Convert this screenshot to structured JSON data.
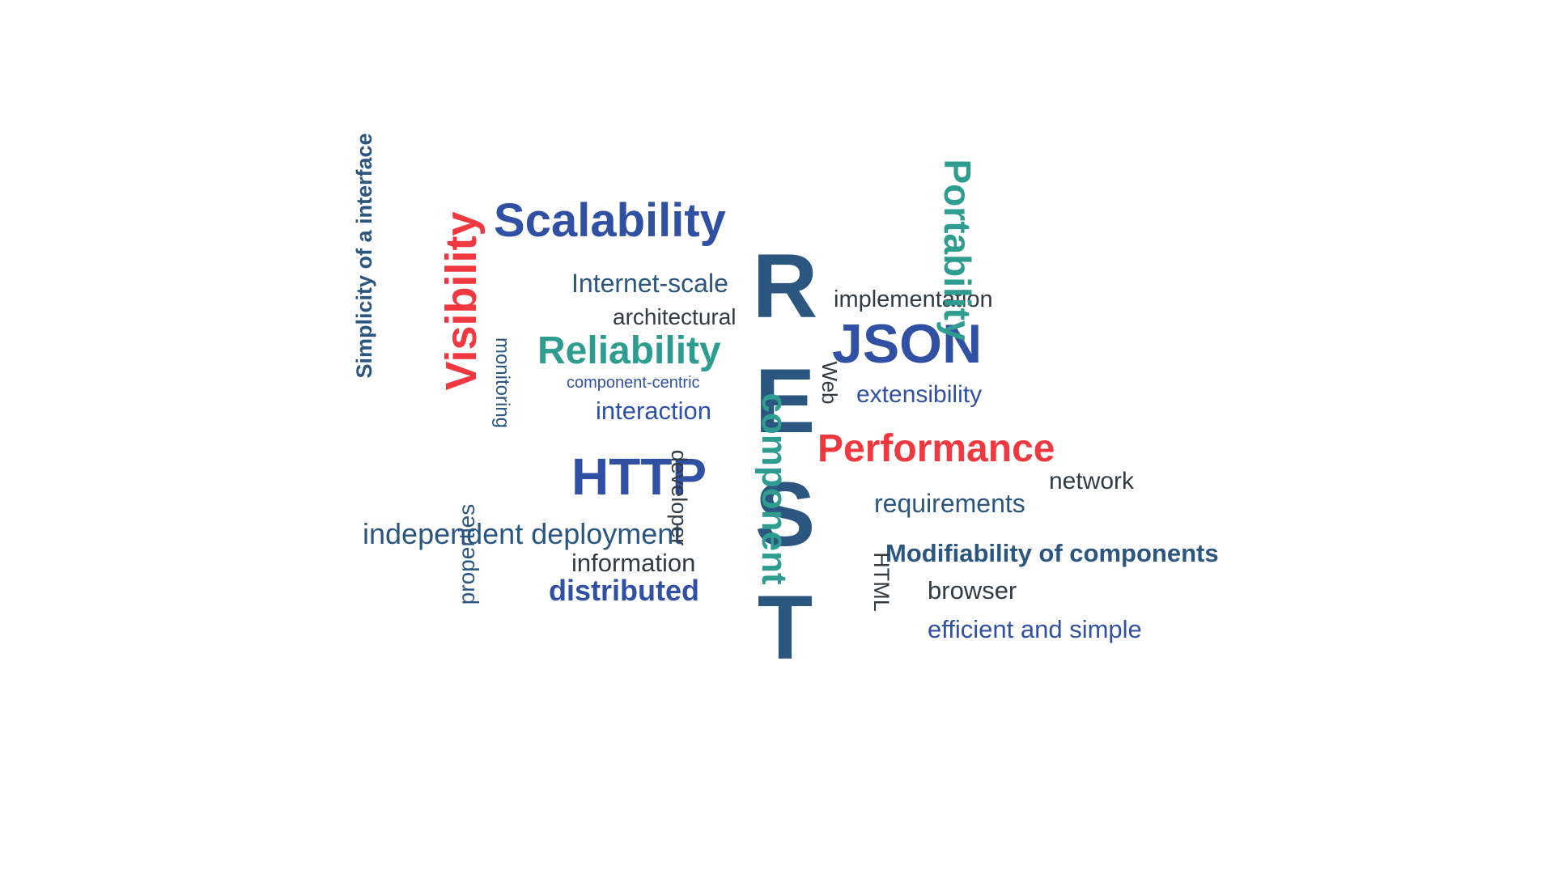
{
  "word_cloud": {
    "rest_letters": [
      "R",
      "E",
      "S",
      "T"
    ],
    "words": {
      "scalability": "Scalability",
      "internet_scale": "Internet-scale",
      "architectural": "architectural",
      "reliability": "Reliability",
      "component_centric": "component-centric",
      "interaction": "interaction",
      "http": "HTTP",
      "independent_deployment": "independent deployment",
      "information": "information",
      "distributed": "distributed",
      "properties": "properties",
      "developer": "developer",
      "monitoring": "monitoring",
      "visibility": "Visibility",
      "simplicity": "Simplicity of a interface",
      "implementation": "implementation",
      "json": "JSON",
      "portability": "Portability",
      "web": "Web",
      "extensibility": "extensibility",
      "performance": "Performance",
      "network": "network",
      "requirements": "requirements",
      "component": "component",
      "modifiability": "Modifiability of components",
      "html": "HTML",
      "browser": "browser",
      "efficient": "efficient and simple"
    },
    "colors": {
      "navy": "#2b5680",
      "blue": "#3051a3",
      "teal": "#2e9c8e",
      "red": "#ef3840",
      "dark": "#333b42"
    }
  }
}
